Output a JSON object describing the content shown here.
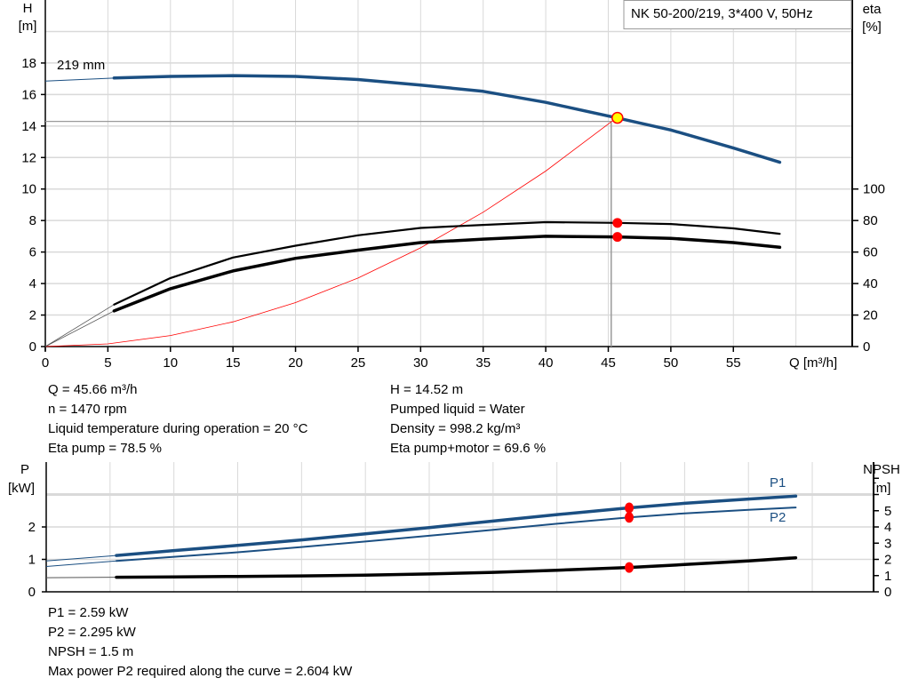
{
  "chart_data": [
    {
      "type": "line",
      "title": "NK 50-200/219, 3*400 V, 50Hz",
      "xlabel": "Q [m³/h]",
      "ylabel_left": {
        "name": "H",
        "unit": "[m]"
      },
      "ylabel_right": {
        "name": "eta",
        "unit": "[%]"
      },
      "xlim": [
        0,
        64.5
      ],
      "ylim_left": [
        0,
        22
      ],
      "ylim_right": [
        0,
        220
      ],
      "x_ticks": [
        0,
        5,
        10,
        15,
        20,
        25,
        30,
        35,
        40,
        45,
        50,
        55
      ],
      "y_left_ticks": [
        0,
        2,
        4,
        6,
        8,
        10,
        12,
        14,
        16,
        18
      ],
      "y_right_ticks": [
        0,
        20,
        40,
        60,
        80,
        100
      ],
      "grid": true,
      "curve_label": "219 mm",
      "series": [
        {
          "key": "H",
          "axis": "left",
          "color": "#1b4f82",
          "x": [
            0,
            5.5,
            10,
            15,
            20,
            25,
            30,
            35,
            40,
            45.66,
            50,
            55,
            58.7
          ],
          "y": [
            16.85,
            17.05,
            17.15,
            17.2,
            17.15,
            16.95,
            16.6,
            16.2,
            15.5,
            14.52,
            13.75,
            12.6,
            11.7
          ]
        },
        {
          "key": "eta_pump",
          "axis": "right",
          "color": "#000000",
          "x": [
            0,
            5.5,
            10,
            15,
            20,
            25,
            30,
            35,
            40,
            45.66,
            50,
            55,
            58.7
          ],
          "y": [
            0,
            26.7,
            43.5,
            56.5,
            64,
            70.6,
            75.3,
            77.2,
            79,
            78.5,
            77.8,
            75,
            71.6
          ]
        },
        {
          "key": "eta_pump_motor",
          "axis": "right",
          "color": "#000000",
          "x": [
            0,
            5.5,
            10,
            15,
            20,
            25,
            30,
            35,
            40,
            45.66,
            50,
            55,
            58.7
          ],
          "y": [
            0,
            22.6,
            36.7,
            48,
            56,
            61.2,
            66,
            68.2,
            70,
            69.6,
            68.7,
            66,
            63
          ]
        },
        {
          "key": "system_curve",
          "axis": "left",
          "color": "#ff0000",
          "x": [
            0,
            5,
            10,
            15,
            20,
            25,
            30,
            35,
            40,
            45.66
          ],
          "y": [
            0,
            0.17,
            0.7,
            1.57,
            2.79,
            4.35,
            6.27,
            8.53,
            11.14,
            14.52
          ]
        }
      ],
      "operating_point": {
        "Q": 45.66,
        "H": 14.52,
        "eta_pump": 78.5,
        "eta_pump_motor": 69.6
      }
    },
    {
      "type": "line",
      "ylabel_left": {
        "name": "P",
        "unit": "[kW]"
      },
      "ylabel_right": {
        "name": "NPSH",
        "unit": "[m]"
      },
      "xlim": [
        0,
        64.8
      ],
      "ylim_left": [
        0,
        4
      ],
      "ylim_right": [
        0,
        8
      ],
      "y_left_ticks": [
        0,
        1,
        2
      ],
      "y_right_ticks": [
        0,
        1,
        2,
        3,
        4,
        5
      ],
      "grid": true,
      "series": [
        {
          "key": "P1",
          "name": "P1",
          "axis": "left",
          "color": "#1b4f82",
          "x": [
            0,
            5.5,
            10,
            15,
            20,
            25,
            30,
            35,
            40,
            45.66,
            50,
            55,
            58.7
          ],
          "y": [
            0.95,
            1.12,
            1.27,
            1.43,
            1.6,
            1.79,
            1.98,
            2.18,
            2.38,
            2.59,
            2.73,
            2.86,
            2.95
          ]
        },
        {
          "key": "P2",
          "name": "P2",
          "axis": "left",
          "color": "#1b4f82",
          "x": [
            0,
            5.5,
            10,
            15,
            20,
            25,
            30,
            35,
            40,
            45.66,
            50,
            55,
            58.7
          ],
          "y": [
            0.78,
            0.95,
            1.08,
            1.22,
            1.38,
            1.55,
            1.73,
            1.91,
            2.1,
            2.295,
            2.42,
            2.53,
            2.6
          ]
        },
        {
          "key": "NPSH",
          "axis": "right",
          "color": "#000000",
          "x": [
            0,
            5.5,
            10,
            15,
            20,
            25,
            30,
            35,
            40,
            45.66,
            50,
            55,
            58.7
          ],
          "y": [
            0.87,
            0.9,
            0.92,
            0.95,
            0.98,
            1.03,
            1.1,
            1.2,
            1.33,
            1.5,
            1.68,
            1.9,
            2.1
          ]
        }
      ],
      "operating_point": {
        "Q": 45.66,
        "P1": 2.59,
        "P2": 2.295,
        "NPSH": 1.5
      }
    }
  ],
  "info_top": {
    "left": [
      "Q = 45.66 m³/h",
      "n = 1470 rpm",
      "Liquid temperature during operation = 20 °C",
      "Eta pump = 78.5 %"
    ],
    "right": [
      "H = 14.52 m",
      "Pumped liquid = Water",
      "Density = 998.2 kg/m³",
      "Eta pump+motor = 69.6 %"
    ]
  },
  "info_bottom": [
    "P1 = 2.59 kW",
    "P2 = 2.295 kW",
    "NPSH = 1.5 m",
    "Max power P2 required along the curve = 2.604 kW"
  ],
  "colors": {
    "curve_blue": "#1b4f82",
    "marker_red": "#ff0000",
    "operating_point_fill": "#ffff00",
    "grid": "#d9d9d9"
  }
}
